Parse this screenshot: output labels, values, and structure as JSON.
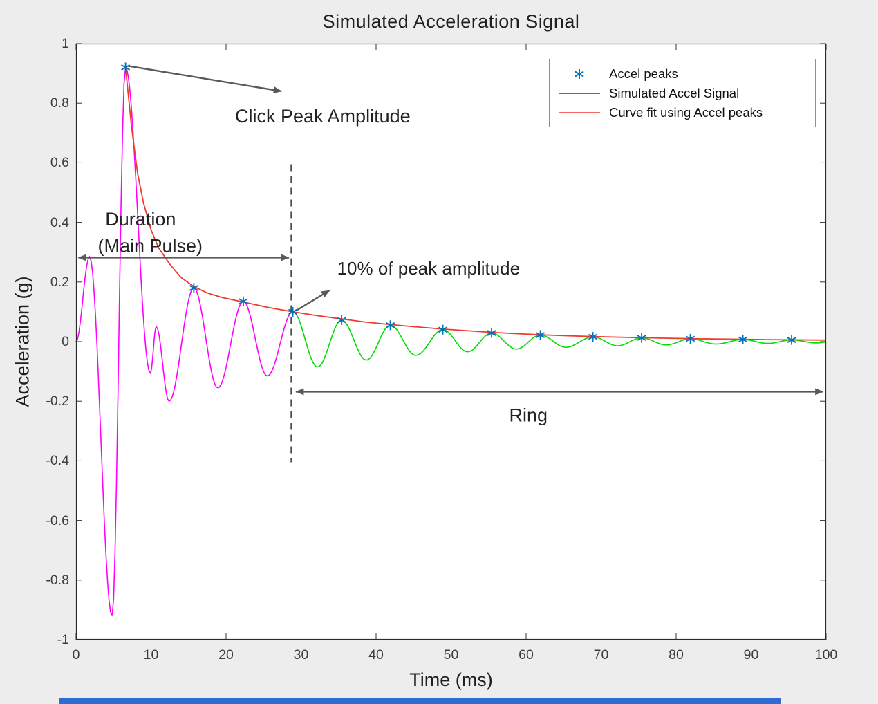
{
  "figure": {
    "title": "Simulated Acceleration Signal",
    "xlabel": "Time (ms)",
    "ylabel": "Acceleration (g)"
  },
  "legend": {
    "entries": [
      {
        "label": "Accel peaks",
        "type": "asterisk",
        "color": "#0072BD"
      },
      {
        "label": "Simulated Accel Signal",
        "type": "line",
        "color": "#2929d6"
      },
      {
        "label": "Curve fit using Accel peaks",
        "type": "line",
        "color": "#ef3b2c"
      }
    ]
  },
  "chart_data": {
    "type": "line",
    "title": "Simulated Acceleration Signal",
    "xlabel": "Time (ms)",
    "ylabel": "Acceleration (g)",
    "xlim": [
      0,
      100
    ],
    "ylim": [
      -1,
      1
    ],
    "x_ticks": [
      0,
      10,
      20,
      30,
      40,
      50,
      60,
      70,
      80,
      90,
      100
    ],
    "y_ticks": [
      -1,
      -0.8,
      -0.6,
      -0.4,
      -0.2,
      0,
      0.2,
      0.4,
      0.6,
      0.8,
      1
    ],
    "grid": false,
    "legend_position": "top-right",
    "main_pulse_color": "#ff00ff",
    "ring_color": "#00dd00",
    "fit_color": "#ef3b2c",
    "marker_color": "#0072BD",
    "transition_time_ms": 28.9,
    "signal_extrema": [
      [
        0,
        0.0
      ],
      [
        1.8,
        0.285
      ],
      [
        4.8,
        -0.92
      ],
      [
        6.6,
        0.92
      ],
      [
        9.9,
        -0.105
      ],
      [
        10.7,
        0.05
      ],
      [
        12.4,
        -0.2
      ],
      [
        15.7,
        0.18
      ],
      [
        18.9,
        -0.155
      ],
      [
        22.3,
        0.135
      ],
      [
        25.5,
        -0.115
      ],
      [
        28.9,
        0.1
      ],
      [
        32.2,
        -0.085
      ],
      [
        35.4,
        0.072
      ],
      [
        38.7,
        -0.062
      ],
      [
        41.9,
        0.055
      ],
      [
        45.3,
        -0.046
      ],
      [
        48.9,
        0.04
      ],
      [
        52.2,
        -0.034
      ],
      [
        55.4,
        0.029
      ],
      [
        58.7,
        -0.025
      ],
      [
        61.9,
        0.022
      ],
      [
        65.3,
        -0.019
      ],
      [
        68.9,
        0.016
      ],
      [
        72.2,
        -0.014
      ],
      [
        75.4,
        0.0125
      ],
      [
        78.7,
        -0.011
      ],
      [
        81.9,
        0.0095
      ],
      [
        85.3,
        -0.008
      ],
      [
        88.9,
        0.007
      ],
      [
        92.2,
        -0.006
      ],
      [
        95.4,
        0.0055
      ],
      [
        98.7,
        -0.0045
      ],
      [
        100,
        -0.002
      ]
    ],
    "peaks": [
      [
        6.6,
        0.92
      ],
      [
        15.7,
        0.18
      ],
      [
        22.3,
        0.135
      ],
      [
        28.9,
        0.1
      ],
      [
        35.4,
        0.072
      ],
      [
        41.9,
        0.055
      ],
      [
        48.9,
        0.04
      ],
      [
        55.4,
        0.029
      ],
      [
        61.9,
        0.022
      ],
      [
        68.9,
        0.016
      ],
      [
        75.4,
        0.0125
      ],
      [
        81.9,
        0.0095
      ],
      [
        88.9,
        0.007
      ],
      [
        95.4,
        0.0055
      ]
    ],
    "fit_curve": [
      [
        6.6,
        0.92
      ],
      [
        7.4,
        0.72
      ],
      [
        8.2,
        0.565
      ],
      [
        9.0,
        0.465
      ],
      [
        10,
        0.375
      ],
      [
        11,
        0.315
      ],
      [
        12.5,
        0.26
      ],
      [
        14,
        0.215
      ],
      [
        15.7,
        0.185
      ],
      [
        17.5,
        0.163
      ],
      [
        19.5,
        0.148
      ],
      [
        22.3,
        0.133
      ],
      [
        25.5,
        0.115
      ],
      [
        28.9,
        0.1
      ],
      [
        32,
        0.088
      ],
      [
        35.4,
        0.076
      ],
      [
        38.5,
        0.066
      ],
      [
        41.9,
        0.057
      ],
      [
        45,
        0.05
      ],
      [
        48.9,
        0.042
      ],
      [
        52,
        0.037
      ],
      [
        55.4,
        0.031
      ],
      [
        58.5,
        0.027
      ],
      [
        61.9,
        0.023
      ],
      [
        65,
        0.02
      ],
      [
        68.9,
        0.017
      ],
      [
        72,
        0.015
      ],
      [
        75.4,
        0.013
      ],
      [
        78.5,
        0.0115
      ],
      [
        81.9,
        0.01
      ],
      [
        85,
        0.0088
      ],
      [
        88.9,
        0.0077
      ],
      [
        92,
        0.0068
      ],
      [
        95.4,
        0.006
      ],
      [
        100,
        0.005
      ]
    ],
    "annotations": {
      "click_peak": {
        "text": "Click Peak Amplitude",
        "text_pos": [
          21.2,
          0.735
        ],
        "arrow": [
          [
            6.9,
            0.925
          ],
          [
            27.4,
            0.84
          ]
        ]
      },
      "duration": {
        "lines": [
          "Duration",
          "(Main Pulse)"
        ],
        "line_pos": [
          [
            3.9,
            0.39
          ],
          [
            2.9,
            0.3
          ]
        ],
        "arrow_y": 0.282,
        "arrow_span": [
          0.3,
          28.4
        ]
      },
      "ten_percent": {
        "text": "10% of peak amplitude",
        "text_pos": [
          34.8,
          0.225
        ],
        "arrow": [
          [
            29.4,
            0.105
          ],
          [
            33.8,
            0.172
          ]
        ]
      },
      "ring": {
        "text": "Ring",
        "text_pos": [
          60.3,
          -0.268
        ],
        "arrow_y": -0.168,
        "arrow_span": [
          29.3,
          99.6
        ]
      },
      "threshold_line": {
        "x": 28.7,
        "y_span": [
          -0.405,
          0.595
        ],
        "style": "dashed"
      }
    }
  }
}
